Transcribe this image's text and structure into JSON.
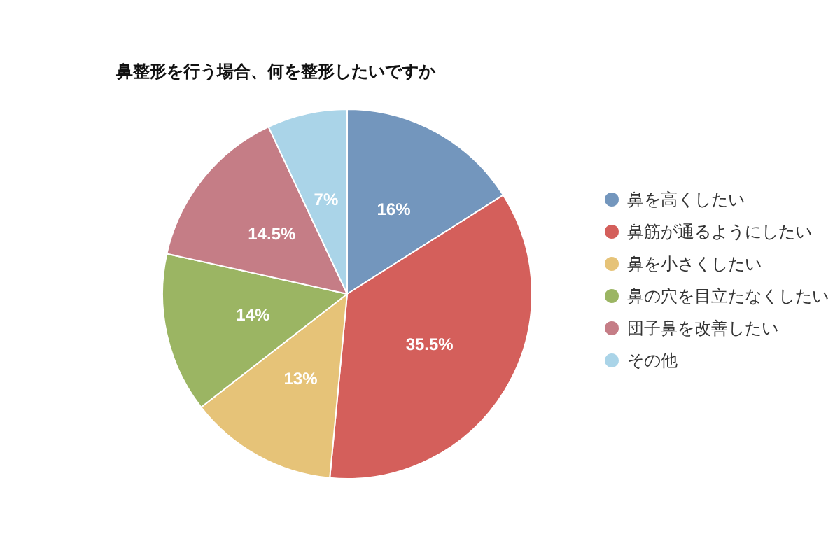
{
  "chart_data": {
    "type": "pie",
    "title": "鼻整形を行う場合、何を整形したいですか",
    "categories": [
      "鼻を高くしたい",
      "鼻筋が通るようにしたい",
      "鼻を小さくしたい",
      "鼻の穴を目立たなくしたい",
      "団子鼻を改善したい",
      "その他"
    ],
    "values": [
      16,
      35.5,
      13,
      14,
      14.5,
      7
    ],
    "colors": [
      "#7396bd",
      "#d45f5b",
      "#e6c378",
      "#9bb563",
      "#c57d86",
      "#aad4e8"
    ],
    "value_labels": [
      "16%",
      "35.5%",
      "13%",
      "14%",
      "14.5%",
      "7%"
    ],
    "legend": "right"
  }
}
